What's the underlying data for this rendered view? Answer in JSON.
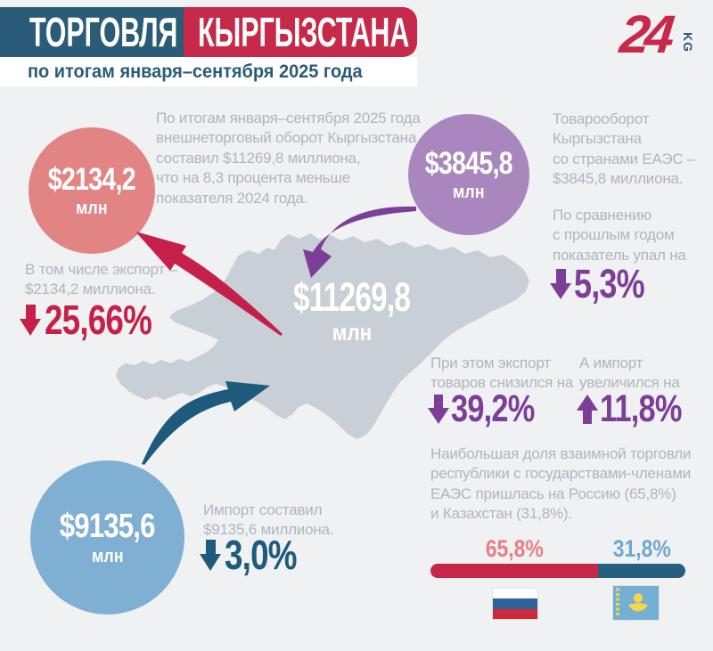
{
  "palette": {
    "background": "#eff1f3",
    "header_teal": "#2a5c78",
    "header_red": "#c62949",
    "map_gray": "#c9cfd6",
    "note_gray": "#aeb6be",
    "accent_red": "#c4204a",
    "accent_purple": "#7d3e98",
    "accent_teal": "#1d5a7c",
    "circle_pink": "#e28384",
    "circle_purple": "#a986bd",
    "circle_blue": "#7fb0d3",
    "bar_red": "#c62749",
    "bar_teal": "#25607f",
    "label_pink": "#e97f86",
    "label_blue": "#6ea9cd"
  },
  "header": {
    "title_left": "ТОРГОВЛЯ",
    "title_right": "КЫРГЫЗСТАНА",
    "subtitle": "по итогам января–сентября 2025 года",
    "logo_number": "24",
    "logo_suffix": "KG"
  },
  "intro_note": "По итогам января–сентября 2025 года\nвнешнеторговый оборот Кыргызстана\nсоставил $11269,8 миллиона,\nчто на 8,3 процента меньше\nпоказателя 2024 года.",
  "total_label": {
    "value": "$11269,8",
    "unit": "млн"
  },
  "export": {
    "circle_value": "$2134,2",
    "circle_unit": "млн",
    "note": "В том числе экспорт –\n$2134,2 миллиона.",
    "change": "25,66%"
  },
  "import": {
    "circle_value": "$9135,6",
    "circle_unit": "млн",
    "note": "Импорт составил\n$9135,6 миллиона.",
    "change": "3,0%"
  },
  "eaeu": {
    "circle_value": "$3845,8",
    "circle_unit": "млн",
    "note1": "Товарооборот\nКыргызстана\nсо странами ЕАЭС –\n$3845,8 миллиона.",
    "note2": "По сравнению\nс прошлым годом\nпоказатель упал на",
    "change": "5,3%",
    "export_note": "При этом экспорт\nтоваров снизился на",
    "export_change": "39,2%",
    "import_note": "А импорт\nувеличился на",
    "import_change": "11,8%",
    "share_note": "Наибольшая доля взаимной торговли\nреспублики с государствами-членами\nЕАЭС пришлась на Россию (65,8%)\nи Казахстан (31,8%)."
  },
  "share_bar": {
    "russia_label": "65,8%",
    "kazakhstan_label": "31,8%",
    "russia_value": 65.8,
    "kazakhstan_value": 31.8
  },
  "chart_data": {
    "type": "bar",
    "title": "ТОРГОВЛЯ КЫРГЫЗСТАНА по итогам января–сентября 2025 года",
    "categories": [
      "Россия",
      "Казахстан"
    ],
    "values": [
      65.8,
      31.8
    ],
    "ylabel": "Доля взаимной торговли с государствами-членами ЕАЭС, %",
    "legend_position": "none",
    "key_figures": {
      "total_trade_turnover_mln_usd": 11269.8,
      "total_change_pct": -8.3,
      "export_mln_usd": 2134.2,
      "export_change_pct": -25.66,
      "import_mln_usd": 9135.6,
      "import_change_pct": -3.0,
      "eaeu_turnover_mln_usd": 3845.8,
      "eaeu_change_pct": -5.3,
      "eaeu_export_change_pct": -39.2,
      "eaeu_import_change_pct": 11.8
    }
  }
}
